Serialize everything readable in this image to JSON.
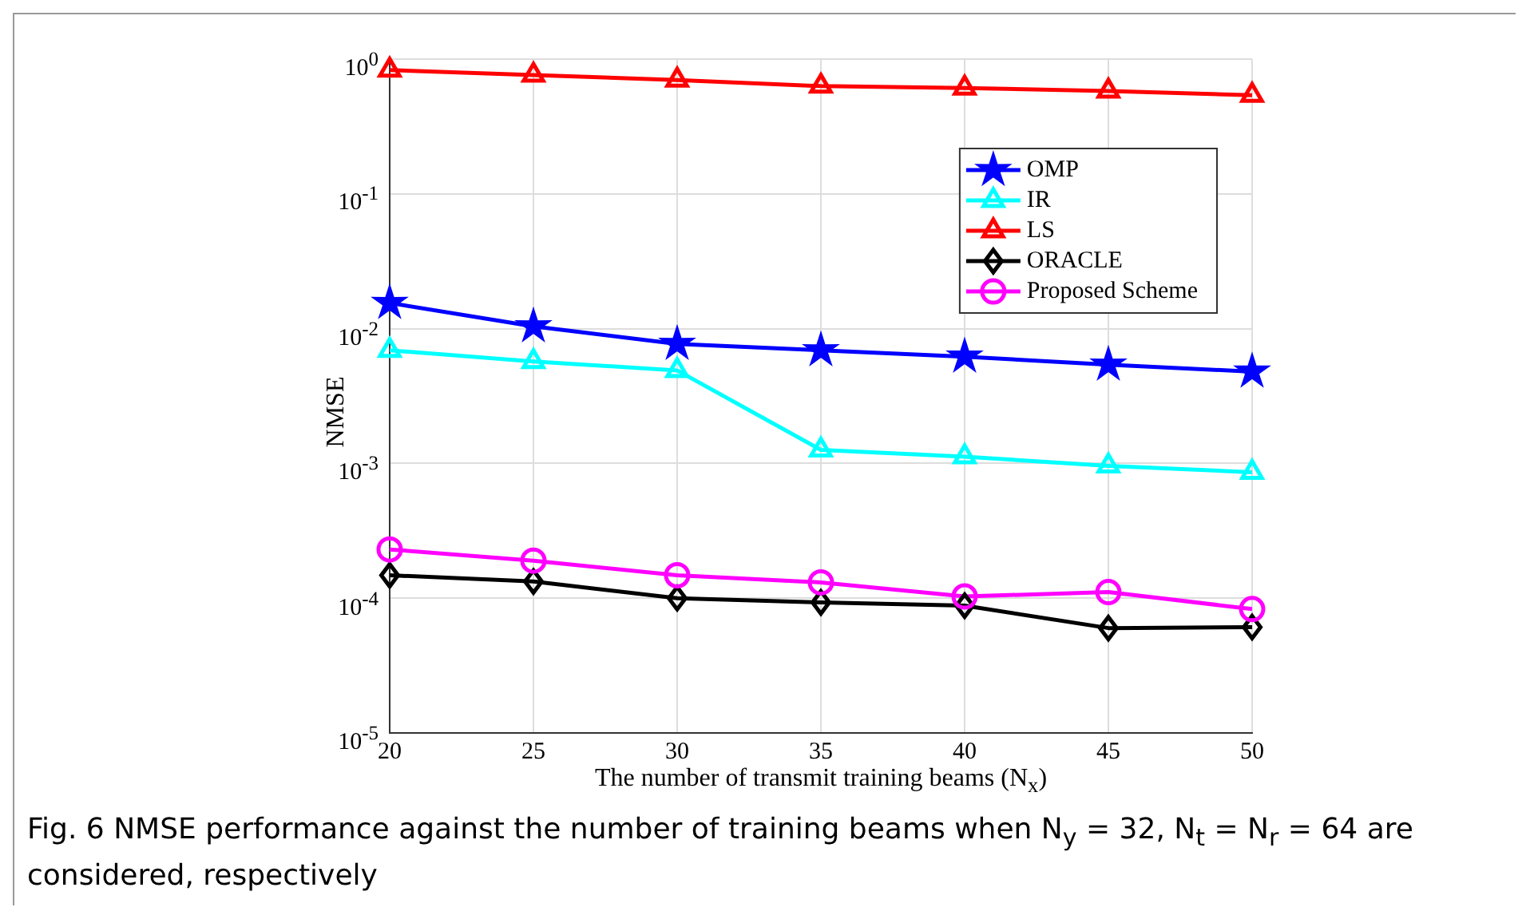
{
  "chart_data": {
    "type": "line",
    "xlabel": "The number of transmit training beams (N$_{x}$)",
    "ylabel": "NMSE",
    "x": [
      20,
      25,
      30,
      35,
      40,
      45,
      50
    ],
    "series": [
      {
        "name": "OMP",
        "color": "#0000ff",
        "marker": "star",
        "values": [
          0.0155,
          0.0104,
          0.0077,
          0.0069,
          0.0062,
          0.0054,
          0.0048
        ]
      },
      {
        "name": "IR",
        "color": "#00ffff",
        "marker": "triangle",
        "values": [
          0.0069,
          0.0057,
          0.0049,
          0.00126,
          0.00112,
          0.00096,
          0.00086
        ]
      },
      {
        "name": "LS",
        "color": "#ff0000",
        "marker": "triangle",
        "values": [
          0.83,
          0.76,
          0.7,
          0.63,
          0.61,
          0.58,
          0.54
        ]
      },
      {
        "name": "ORACLE",
        "color": "#000000",
        "marker": "diamond",
        "values": [
          0.000148,
          0.000133,
          0.0001,
          9.3e-05,
          8.8e-05,
          6e-05,
          6.1e-05
        ]
      },
      {
        "name": "Proposed Scheme",
        "color": "#ff00ff",
        "marker": "circle",
        "values": [
          0.00023,
          0.00019,
          0.000148,
          0.000131,
          0.000103,
          0.000111,
          8.3e-05
        ]
      }
    ],
    "xlim": [
      20,
      50
    ],
    "xticks": [
      20,
      25,
      30,
      35,
      40,
      45,
      50
    ],
    "ylim": [
      1e-05,
      1
    ],
    "yticks": [
      {
        "value": 1e-05,
        "label": "10$^{-5}$"
      },
      {
        "value": 0.0001,
        "label": "10$^{-4}$"
      },
      {
        "value": 0.001,
        "label": "10$^{-3}$"
      },
      {
        "value": 0.01,
        "label": "10$^{-2}$"
      },
      {
        "value": 0.1,
        "label": "10$^{-1}$"
      },
      {
        "value": 1,
        "label": "10$^{0}$"
      }
    ],
    "log": "y",
    "grid": true,
    "legend": "top right",
    "line_style": "solid",
    "annotations": [
      "Fig. 6  NMSE performance against the number of training beams when N$_{y}$ = 32, N$_{t}$ = N$_{r}$ = 64 are considered, respectively"
    ]
  }
}
